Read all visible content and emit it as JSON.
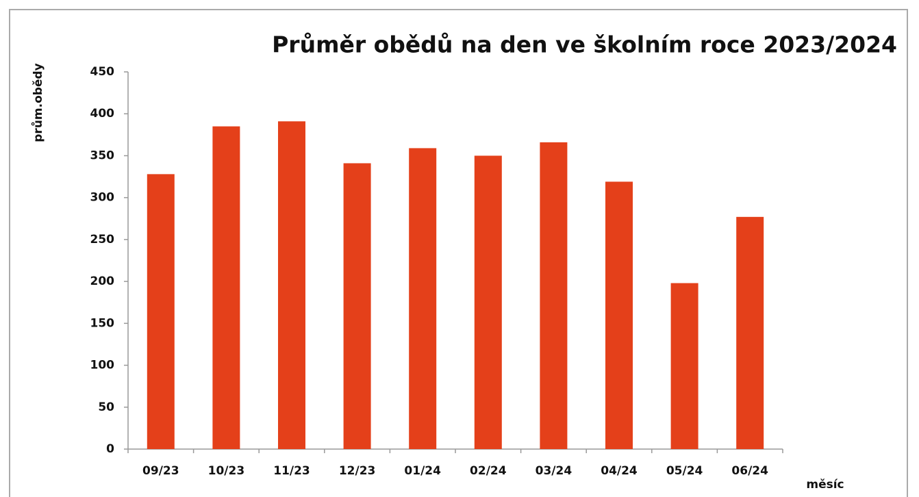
{
  "chart_data": {
    "type": "bar",
    "title": "Průměr obědů na den ve školním roce 2023/2024",
    "y_label": "prům.obědy",
    "x_label": "měsíc",
    "categories": [
      "09/23",
      "10/23",
      "11/23",
      "12/23",
      "01/24",
      "02/24",
      "03/24",
      "04/24",
      "05/24",
      "06/24"
    ],
    "values": [
      328,
      385,
      391,
      341,
      359,
      350,
      366,
      319,
      198,
      277
    ],
    "color": "#e4401a",
    "ylim": [
      0,
      450
    ],
    "yticks": [
      0,
      50,
      100,
      150,
      200,
      250,
      300,
      350,
      400,
      450
    ],
    "grid": false
  }
}
